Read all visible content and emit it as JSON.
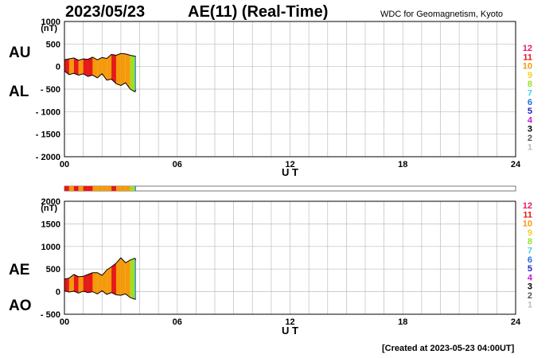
{
  "header": {
    "date": "2023/05/23",
    "title": "AE(11) (Real-Time)",
    "source": "WDC for Geomagnetism, Kyoto"
  },
  "footer": {
    "created": "[Created at 2023-05-23 04:00UT]"
  },
  "legend": {
    "labels": [
      "12",
      "11",
      "10",
      "9",
      "8",
      "7",
      "6",
      "5",
      "4",
      "3",
      "2",
      "1"
    ],
    "colors": [
      "#e8186e",
      "#e61919",
      "#f59a0a",
      "#f4d02a",
      "#9ce023",
      "#3ed6e0",
      "#1f6fe6",
      "#2222c0",
      "#c21bd6",
      "#000000",
      "#555555",
      "#bbbbbb"
    ]
  },
  "chart_data": [
    {
      "type": "area",
      "title": "AE(11) (Real-Time)",
      "xlabel": "U T",
      "ylabel": "(nT)",
      "xlim": [
        0,
        24
      ],
      "ylim": [
        -2000,
        1000
      ],
      "xticks": [
        "00",
        "06",
        "12",
        "18",
        "24"
      ],
      "yticks": [
        "1000",
        "500",
        "0",
        "- 500",
        "- 1000",
        "- 1500",
        "- 2000"
      ],
      "side_labels": [
        "AU",
        "AL"
      ],
      "grid": true,
      "x": [
        0,
        0.25,
        0.5,
        0.75,
        1,
        1.25,
        1.5,
        1.75,
        2,
        2.25,
        2.5,
        2.75,
        3,
        3.25,
        3.5,
        3.75,
        3.8
      ],
      "series": [
        {
          "name": "AU",
          "values": [
            150,
            170,
            190,
            140,
            170,
            160,
            210,
            150,
            200,
            180,
            270,
            250,
            290,
            280,
            250,
            230,
            220
          ]
        },
        {
          "name": "AL",
          "values": [
            -100,
            -180,
            -150,
            -190,
            -160,
            -220,
            -190,
            -250,
            -160,
            -300,
            -280,
            -380,
            -420,
            -360,
            -500,
            -560,
            -520
          ]
        }
      ],
      "band_colors": [
        "#e61919",
        "#f59a0a",
        "#e61919",
        "#f59a0a",
        "#e61919",
        "#e61919",
        "#f59a0a",
        "#f59a0a",
        "#f59a0a",
        "#f59a0a",
        "#e61919",
        "#f59a0a",
        "#f59a0a",
        "#f59a0a",
        "#9ce023",
        "#1f6fe6"
      ]
    },
    {
      "type": "area",
      "title": "",
      "xlabel": "U T",
      "ylabel": "(nT)",
      "xlim": [
        0,
        24
      ],
      "ylim": [
        -500,
        2000
      ],
      "xticks": [
        "00",
        "06",
        "12",
        "18",
        "24"
      ],
      "yticks": [
        "2000",
        "1500",
        "1000",
        "500",
        "0",
        "- 500"
      ],
      "side_labels": [
        "AE",
        "AO"
      ],
      "grid": true,
      "x": [
        0,
        0.25,
        0.5,
        0.75,
        1,
        1.25,
        1.5,
        1.75,
        2,
        2.25,
        2.5,
        2.75,
        3,
        3.25,
        3.5,
        3.75,
        3.8
      ],
      "series": [
        {
          "name": "AE",
          "values": [
            280,
            300,
            380,
            330,
            340,
            380,
            420,
            420,
            360,
            480,
            550,
            630,
            750,
            640,
            700,
            740,
            700
          ]
        },
        {
          "name": "AO",
          "values": [
            20,
            -10,
            10,
            -30,
            10,
            -20,
            0,
            -50,
            20,
            -60,
            -20,
            -70,
            -80,
            -50,
            -130,
            -170,
            -160
          ]
        }
      ],
      "band_colors": [
        "#e61919",
        "#f59a0a",
        "#e61919",
        "#f59a0a",
        "#e61919",
        "#e61919",
        "#f59a0a",
        "#f59a0a",
        "#f59a0a",
        "#f59a0a",
        "#e61919",
        "#f59a0a",
        "#f59a0a",
        "#f59a0a",
        "#9ce023",
        "#1f6fe6"
      ]
    }
  ]
}
